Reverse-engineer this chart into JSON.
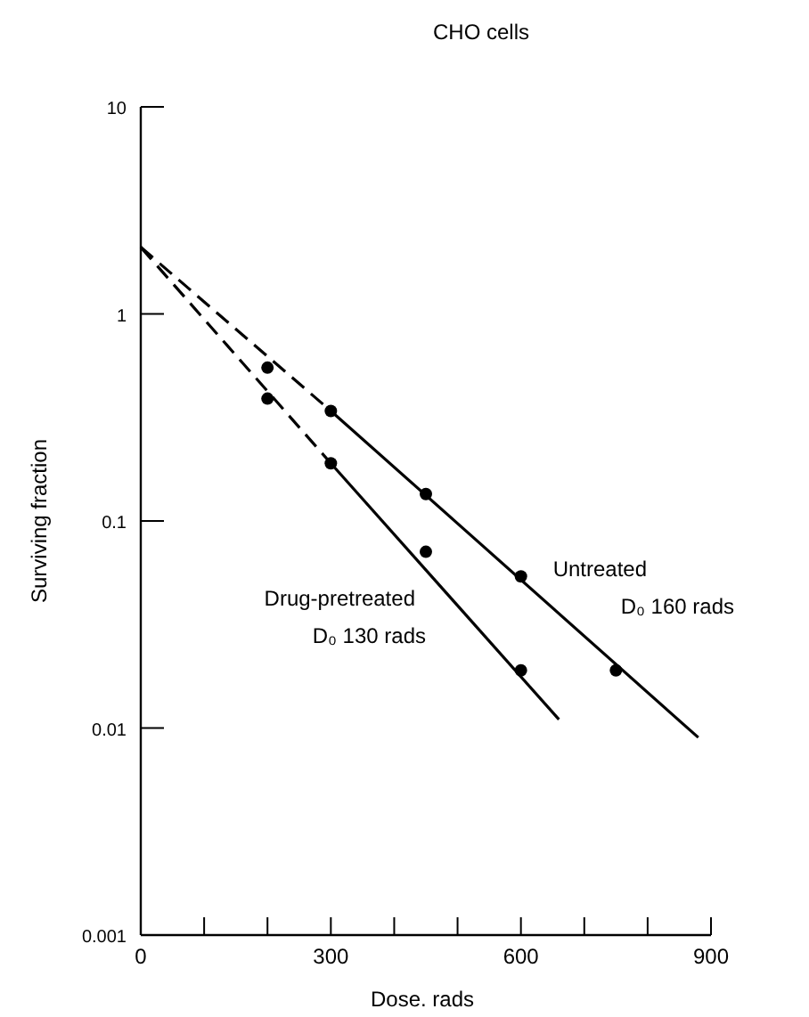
{
  "chart_data": {
    "type": "scatter",
    "title": "CHO  cells",
    "xlabel": "Dose.  rads",
    "ylabel": "Surviving  fraction",
    "log": "y",
    "xlim": [
      0,
      900
    ],
    "ylim": [
      0.001,
      10
    ],
    "xticks": [
      0,
      {
        "value": 100,
        "label": null
      },
      {
        "value": 200,
        "label": null
      },
      300,
      {
        "value": 400,
        "label": null
      },
      {
        "value": 500,
        "label": null
      },
      600,
      {
        "value": 700,
        "label": null
      },
      {
        "value": 800,
        "label": null
      },
      900
    ],
    "yticks": [
      10,
      1,
      0.1,
      0.01,
      0.001
    ],
    "grid": false,
    "series": [
      {
        "name": "Untreated",
        "marker": "circle",
        "color": "#000000",
        "x": [
          200,
          300,
          450,
          600,
          750
        ],
        "values": [
          0.55,
          0.34,
          0.135,
          0.054,
          0.019
        ]
      },
      {
        "name": "Drug-pretreated",
        "marker": "circle",
        "color": "#000000",
        "x": [
          200,
          300,
          450,
          600
        ],
        "values": [
          0.39,
          0.19,
          0.071,
          0.019
        ]
      },
      {
        "type": "line",
        "line_style": "dashed",
        "color": "#000000",
        "x": [
          0,
          300
        ],
        "values": [
          2.1,
          0.34
        ]
      },
      {
        "type": "line",
        "line_style": "solid",
        "color": "#000000",
        "x": [
          300,
          880
        ],
        "values": [
          0.34,
          0.009
        ]
      },
      {
        "type": "line",
        "line_style": "dashed",
        "color": "#000000",
        "x": [
          0,
          300
        ],
        "values": [
          2.1,
          0.19
        ]
      },
      {
        "type": "line",
        "line_style": "solid",
        "color": "#000000",
        "x": [
          300,
          660
        ],
        "values": [
          0.19,
          0.011
        ]
      }
    ],
    "annotations": [
      "D₀ 160 rads",
      "D₀ 130 rads"
    ]
  }
}
